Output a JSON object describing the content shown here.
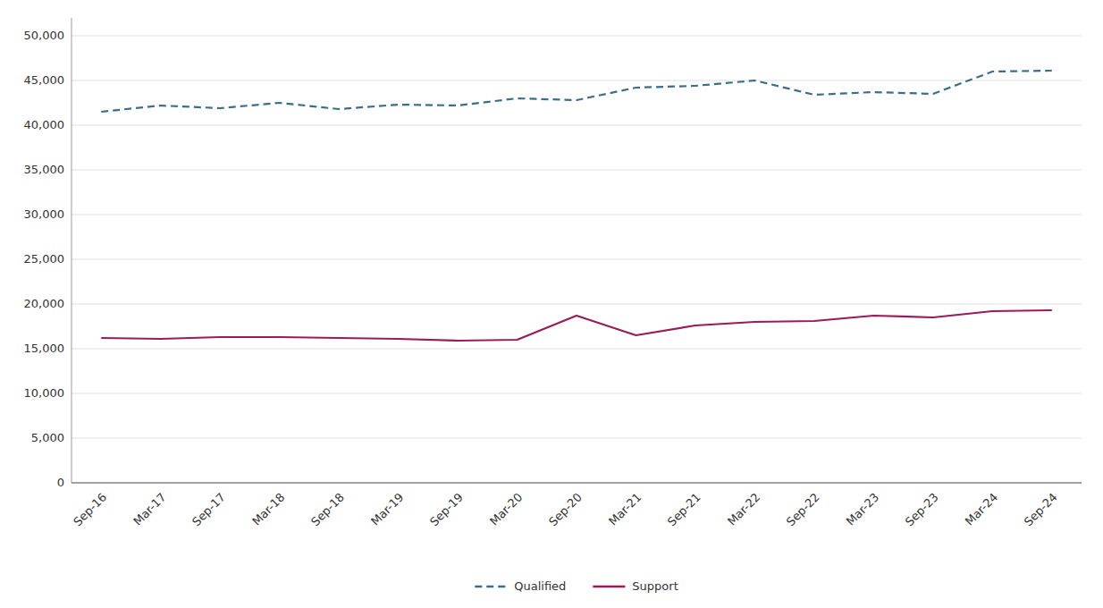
{
  "chart_data": {
    "type": "line",
    "categories": [
      "Sep-16",
      "Mar-17",
      "Sep-17",
      "Mar-18",
      "Sep-18",
      "Mar-19",
      "Sep-19",
      "Mar-20",
      "Sep-20",
      "Mar-21",
      "Sep-21",
      "Mar-22",
      "Sep-22",
      "Mar-23",
      "Sep-23",
      "Mar-24",
      "Sep-24"
    ],
    "series": [
      {
        "name": "Qualified",
        "color": "#3b6e87",
        "line_style": "dashed",
        "values": [
          41500,
          42200,
          41900,
          42500,
          41800,
          42300,
          42200,
          43000,
          42800,
          44200,
          44400,
          45000,
          43400,
          43700,
          43500,
          46000,
          46100
        ]
      },
      {
        "name": "Support",
        "color": "#9b1b5a",
        "line_style": "solid",
        "values": [
          16200,
          16100,
          16300,
          16300,
          16200,
          16100,
          15900,
          16000,
          18700,
          16500,
          17600,
          18000,
          18100,
          18700,
          18500,
          19200,
          19300
        ]
      }
    ],
    "ylim": [
      0,
      52000
    ],
    "yticks": [
      0,
      {
        "value": 5000,
        "label": "5,000"
      },
      {
        "value": 10000,
        "label": "10,000"
      },
      {
        "value": 15000,
        "label": "15,000"
      },
      {
        "value": 20000,
        "label": "20,000"
      },
      {
        "value": 25000,
        "label": "25,000"
      },
      {
        "value": 30000,
        "label": "30,000"
      },
      {
        "value": 35000,
        "label": "35,000"
      },
      {
        "value": 40000,
        "label": "40,000"
      },
      {
        "value": 45000,
        "label": "45,000"
      },
      {
        "value": 50000,
        "label": "50,000"
      }
    ],
    "grid": true,
    "legend": "bottom"
  }
}
